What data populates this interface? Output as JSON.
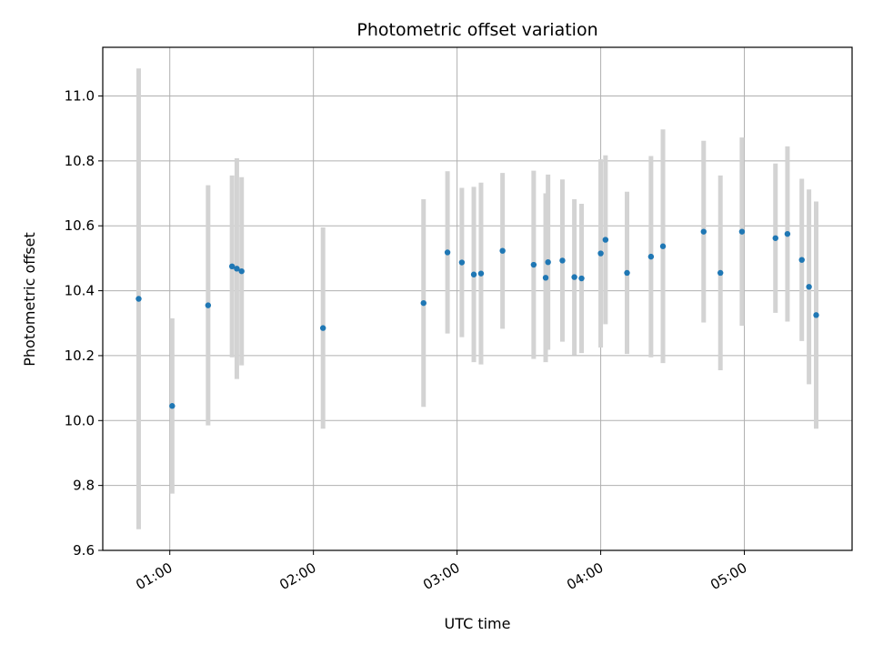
{
  "chart_data": {
    "type": "scatter",
    "title": "Photometric offset variation",
    "xlabel": "UTC time",
    "ylabel": "Photometric offset",
    "xlim": [
      "00:32",
      "05:45"
    ],
    "ylim": [
      9.6,
      11.15
    ],
    "x_ticks": [
      "01:00",
      "02:00",
      "03:00",
      "04:00",
      "05:00"
    ],
    "y_ticks": [
      9.6,
      9.8,
      10.0,
      10.2,
      10.4,
      10.6,
      10.8,
      11.0
    ],
    "grid": true,
    "colors": {
      "points": "#1f77b4",
      "errorbars": "#d3d3d3",
      "grid": "#b0b0b0"
    },
    "points": [
      {
        "x": "00:47",
        "y": 10.375,
        "err": 0.71
      },
      {
        "x": "01:01",
        "y": 10.045,
        "err": 0.27
      },
      {
        "x": "01:16",
        "y": 10.355,
        "err": 0.37
      },
      {
        "x": "01:26",
        "y": 10.475,
        "err": 0.28
      },
      {
        "x": "01:28",
        "y": 10.468,
        "err": 0.34
      },
      {
        "x": "01:30",
        "y": 10.46,
        "err": 0.29
      },
      {
        "x": "02:04",
        "y": 10.285,
        "err": 0.31
      },
      {
        "x": "02:46",
        "y": 10.362,
        "err": 0.32
      },
      {
        "x": "02:56",
        "y": 10.518,
        "err": 0.25
      },
      {
        "x": "03:02",
        "y": 10.487,
        "err": 0.23
      },
      {
        "x": "03:07",
        "y": 10.45,
        "err": 0.27
      },
      {
        "x": "03:10",
        "y": 10.453,
        "err": 0.28
      },
      {
        "x": "03:19",
        "y": 10.523,
        "err": 0.24
      },
      {
        "x": "03:32",
        "y": 10.48,
        "err": 0.29
      },
      {
        "x": "03:37",
        "y": 10.44,
        "err": 0.26
      },
      {
        "x": "03:38",
        "y": 10.488,
        "err": 0.27
      },
      {
        "x": "03:44",
        "y": 10.493,
        "err": 0.25
      },
      {
        "x": "03:49",
        "y": 10.442,
        "err": 0.24
      },
      {
        "x": "03:52",
        "y": 10.438,
        "err": 0.23
      },
      {
        "x": "04:00",
        "y": 10.515,
        "err": 0.29
      },
      {
        "x": "04:02",
        "y": 10.557,
        "err": 0.26
      },
      {
        "x": "04:11",
        "y": 10.455,
        "err": 0.25
      },
      {
        "x": "04:21",
        "y": 10.505,
        "err": 0.31
      },
      {
        "x": "04:26",
        "y": 10.537,
        "err": 0.36
      },
      {
        "x": "04:43",
        "y": 10.582,
        "err": 0.28
      },
      {
        "x": "04:50",
        "y": 10.455,
        "err": 0.3
      },
      {
        "x": "04:59",
        "y": 10.582,
        "err": 0.29
      },
      {
        "x": "05:13",
        "y": 10.562,
        "err": 0.23
      },
      {
        "x": "05:18",
        "y": 10.575,
        "err": 0.27
      },
      {
        "x": "05:24",
        "y": 10.495,
        "err": 0.25
      },
      {
        "x": "05:27",
        "y": 10.412,
        "err": 0.3
      },
      {
        "x": "05:30",
        "y": 10.325,
        "err": 0.35
      }
    ]
  }
}
